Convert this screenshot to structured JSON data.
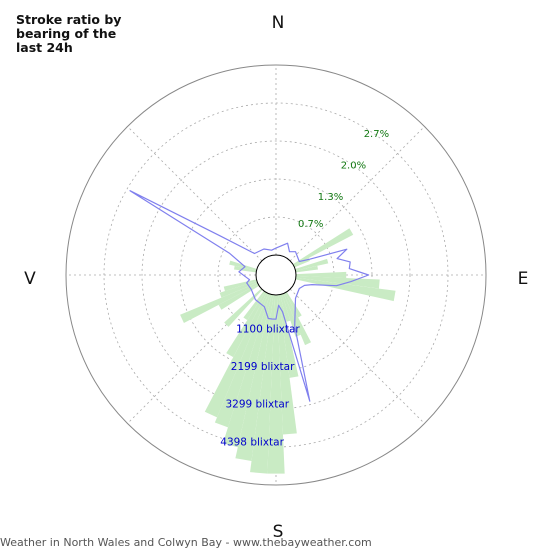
{
  "chart_data": {
    "type": "polar",
    "title": "Stroke ratio by bearing of the last 24h",
    "footer": "Weather in North Wales and Colwyn Bay - www.thebayweather.com",
    "directions": {
      "north": "N",
      "east": "E",
      "south": "S",
      "west": "V"
    },
    "percent_ticks": [
      {
        "value": 0.7,
        "label": "0.7%"
      },
      {
        "value": 1.3,
        "label": "1.3%"
      },
      {
        "value": 2.0,
        "label": "2.0%"
      },
      {
        "value": 2.7,
        "label": "2.7%"
      }
    ],
    "percent_max": 3.4,
    "count_ticks": [
      {
        "value": 1100,
        "label": "1100 blixtar"
      },
      {
        "value": 2199,
        "label": "2199 blixtar"
      },
      {
        "value": 3299,
        "label": "3299 blixtar"
      },
      {
        "value": 4398,
        "label": "4398 blixtar"
      }
    ],
    "count_max": 5497,
    "bar_width_deg": 5,
    "bars": [
      {
        "bearing": 60,
        "value": 1.2
      },
      {
        "bearing": 65,
        "value": 0.3
      },
      {
        "bearing": 75,
        "value": 0.6
      },
      {
        "bearing": 80,
        "value": 0.4
      },
      {
        "bearing": 90,
        "value": 0.9
      },
      {
        "bearing": 95,
        "value": 1.5
      },
      {
        "bearing": 100,
        "value": 1.8
      },
      {
        "bearing": 150,
        "value": 0.5
      },
      {
        "bearing": 155,
        "value": 1.0
      },
      {
        "bearing": 160,
        "value": 0.8
      },
      {
        "bearing": 165,
        "value": 0.5
      },
      {
        "bearing": 170,
        "value": 1.5
      },
      {
        "bearing": 175,
        "value": 2.5
      },
      {
        "bearing": 180,
        "value": 3.2
      },
      {
        "bearing": 185,
        "value": 3.2
      },
      {
        "bearing": 190,
        "value": 3.0
      },
      {
        "bearing": 195,
        "value": 2.8
      },
      {
        "bearing": 200,
        "value": 2.5
      },
      {
        "bearing": 205,
        "value": 2.4
      },
      {
        "bearing": 210,
        "value": 1.3
      },
      {
        "bearing": 215,
        "value": 0.6
      },
      {
        "bearing": 225,
        "value": 0.9
      },
      {
        "bearing": 240,
        "value": 0.8
      },
      {
        "bearing": 245,
        "value": 1.5
      },
      {
        "bearing": 250,
        "value": 0.7
      },
      {
        "bearing": 255,
        "value": 0.6
      },
      {
        "bearing": 280,
        "value": 0.4
      },
      {
        "bearing": 285,
        "value": 0.5
      }
    ],
    "line": [
      {
        "bearing": 0,
        "count": 200
      },
      {
        "bearing": 20,
        "count": 400
      },
      {
        "bearing": 30,
        "count": 200
      },
      {
        "bearing": 40,
        "count": 300
      },
      {
        "bearing": 60,
        "count": 200
      },
      {
        "bearing": 65,
        "count": 500
      },
      {
        "bearing": 70,
        "count": 1600
      },
      {
        "bearing": 75,
        "count": 1250
      },
      {
        "bearing": 80,
        "count": 1600
      },
      {
        "bearing": 85,
        "count": 1550
      },
      {
        "bearing": 90,
        "count": 2100
      },
      {
        "bearing": 95,
        "count": 1600
      },
      {
        "bearing": 100,
        "count": 1200
      },
      {
        "bearing": 105,
        "count": 500
      },
      {
        "bearing": 110,
        "count": 300
      },
      {
        "bearing": 120,
        "count": 200
      },
      {
        "bearing": 140,
        "count": 300
      },
      {
        "bearing": 160,
        "count": 1000
      },
      {
        "bearing": 165,
        "count": 3200
      },
      {
        "bearing": 170,
        "count": 500
      },
      {
        "bearing": 175,
        "count": 300
      },
      {
        "bearing": 180,
        "count": 700
      },
      {
        "bearing": 185,
        "count": 700
      },
      {
        "bearing": 190,
        "count": 700
      },
      {
        "bearing": 200,
        "count": 400
      },
      {
        "bearing": 220,
        "count": 350
      },
      {
        "bearing": 240,
        "count": 250
      },
      {
        "bearing": 255,
        "count": 300
      },
      {
        "bearing": 260,
        "count": 200
      },
      {
        "bearing": 275,
        "count": 500
      },
      {
        "bearing": 285,
        "count": 350
      },
      {
        "bearing": 295,
        "count": 900
      },
      {
        "bearing": 300,
        "count": 4300
      },
      {
        "bearing": 305,
        "count": 1400
      },
      {
        "bearing": 315,
        "count": 300
      },
      {
        "bearing": 335,
        "count": 250
      },
      {
        "bearing": 350,
        "count": 150
      }
    ],
    "colors": {
      "bars": "#c9ebc4",
      "line": "#8080ee",
      "grid": "#aaaaaa",
      "pct_labels": "#117711",
      "count_labels": "#0000cc"
    }
  }
}
